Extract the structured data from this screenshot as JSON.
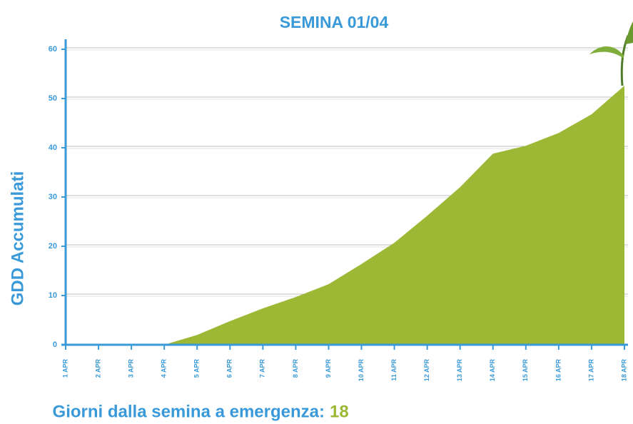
{
  "chart_data": {
    "type": "area",
    "title": "SEMINA 01/04",
    "y_label": "GDD Accumulati",
    "x_label": "Giorni dalla semina a emergenza:",
    "days": 18,
    "categories": [
      "1 APR",
      "2 APR",
      "3 APR",
      "4 APR",
      "5 APR",
      "6 APR",
      "7 APR",
      "8 APR",
      "9 APR",
      "10 APR",
      "11 APR",
      "12 APR",
      "13 APR",
      "14 APR",
      "15 APR",
      "16 APR",
      "17 APR",
      "18 APR"
    ],
    "values": [
      0,
      0,
      0,
      0,
      2,
      4.8,
      7.4,
      9.7,
      12.3,
      16.4,
      20.7,
      26.2,
      32,
      38.8,
      40.4,
      43,
      46.8,
      52.6
    ],
    "color": "#9cb834",
    "ylim": [
      0,
      60
    ],
    "yticks": [
      0,
      10,
      20,
      30,
      40,
      50,
      60
    ],
    "grid": true
  }
}
